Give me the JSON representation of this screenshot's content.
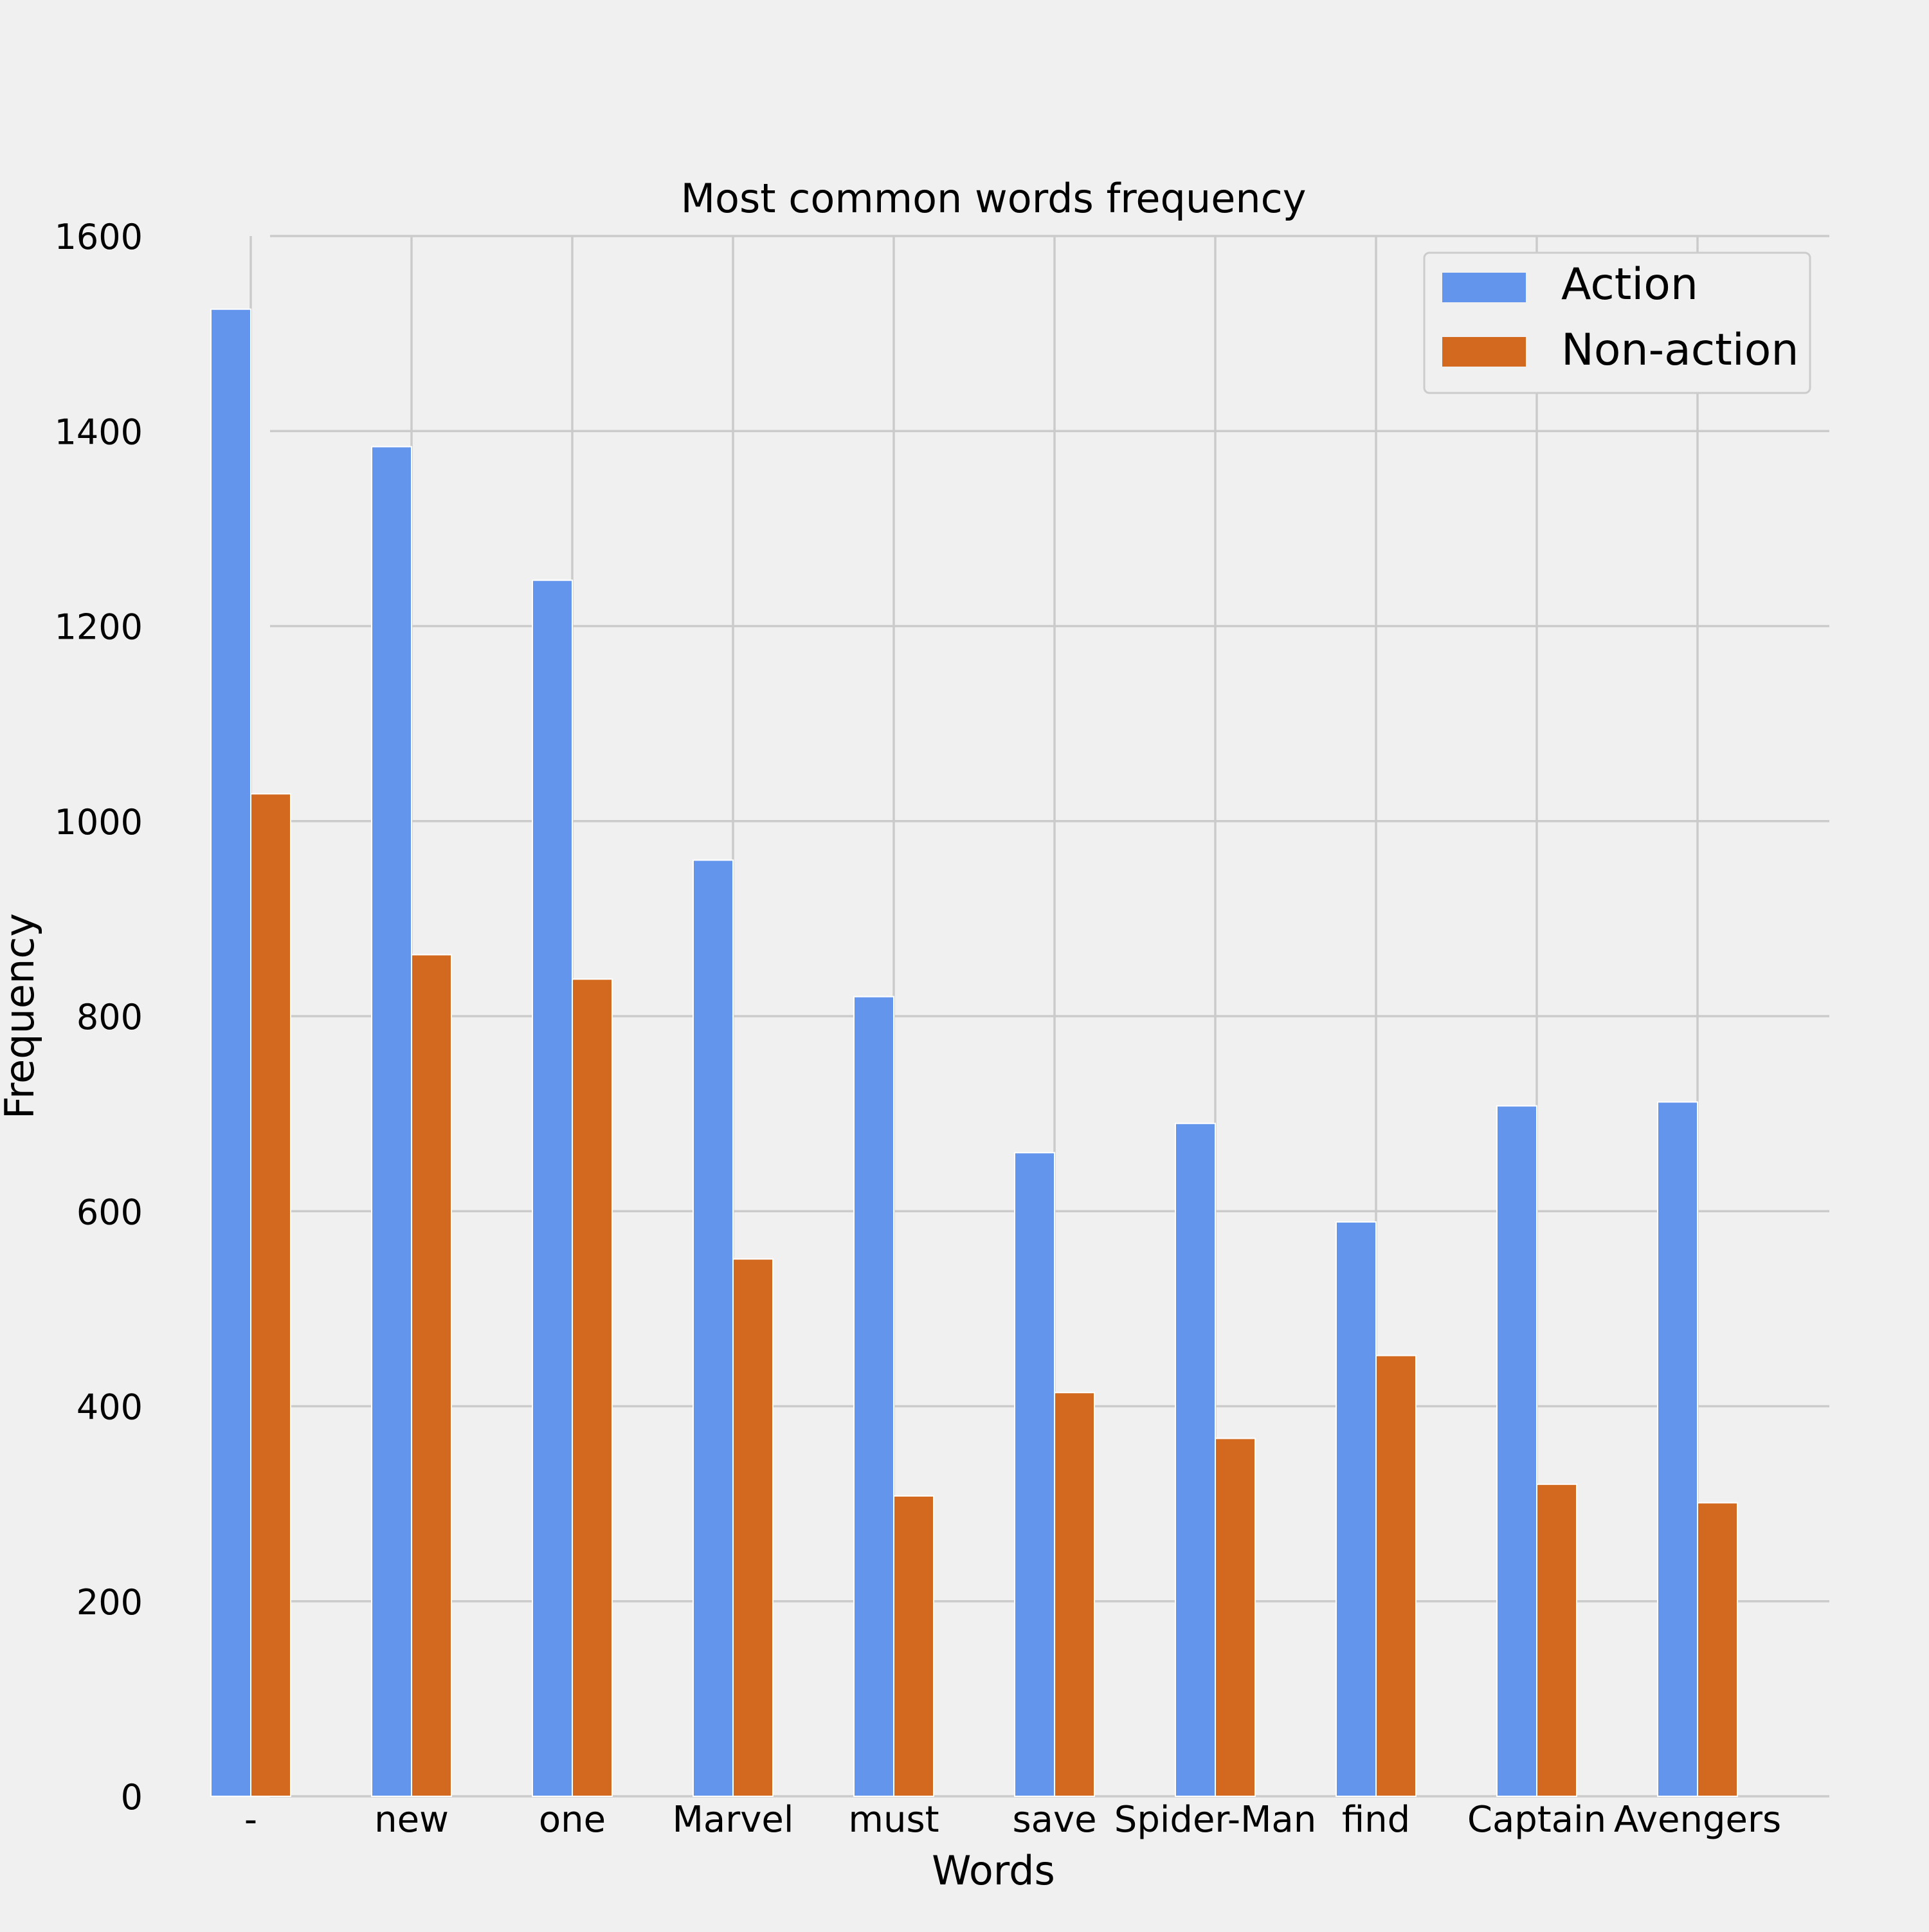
{
  "chart_data": {
    "type": "bar",
    "title": "Most common words frequency",
    "xlabel": "Words",
    "ylabel": "Frequency",
    "categories": [
      "-",
      "new",
      "one",
      "Marvel",
      "must",
      "save",
      "Spider-Man",
      "find",
      "Captain",
      "Avengers"
    ],
    "series": [
      {
        "name": "Action",
        "color": "#6495ed",
        "values": [
          1525,
          1384,
          1247,
          960,
          820,
          660,
          690,
          589,
          708,
          712
        ]
      },
      {
        "name": "Non-action",
        "color": "#d2691e",
        "values": [
          1028,
          863,
          838,
          551,
          308,
          414,
          367,
          452,
          320,
          301
        ]
      }
    ],
    "ylim": [
      0,
      1600
    ],
    "yticks": [
      0,
      200,
      400,
      600,
      800,
      1000,
      1200,
      1400,
      1600
    ],
    "grid": true,
    "legend_position": "top-right"
  }
}
